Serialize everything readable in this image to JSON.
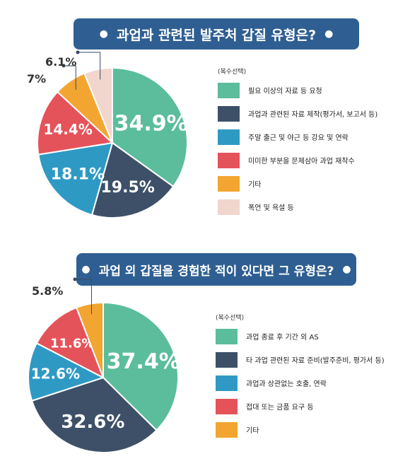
{
  "colors": {
    "title_bg": "#2f5f92",
    "leader": "#3a4a66"
  },
  "chart_data": [
    {
      "type": "pie",
      "title": "과업과 관련된 발주처 갑질 유형은?",
      "legend_note": "(복수선택)",
      "legend_position": "right",
      "slices": [
        {
          "label": "필요 이상의 자료 등 요청",
          "value": 34.9,
          "display": "34.9%",
          "color": "#5bbd9b"
        },
        {
          "label": "과업과 관련된 자료 제작(평가서, 보고서 등)",
          "value": 19.5,
          "display": "19.5%",
          "color": "#3d5068"
        },
        {
          "label": "주말 출근 및 야근 등 강요 및 연락",
          "value": 18.1,
          "display": "18.1%",
          "color": "#2e9ac4"
        },
        {
          "label": "미미한 부분을 문제삼아 과업 재착수",
          "value": 14.4,
          "display": "14.4%",
          "color": "#e5535a"
        },
        {
          "label": "기타",
          "value": 7,
          "display": "7%",
          "color": "#f2a530"
        },
        {
          "label": "폭언 및 욕설 등",
          "value": 6.1,
          "display": "6.1%",
          "color": "#f1d6cd"
        }
      ]
    },
    {
      "type": "pie",
      "title": "과업 외 갑질을 경험한 적이 있다면 그 유형은?",
      "legend_note": "(복수선택)",
      "legend_position": "right",
      "slices": [
        {
          "label": "과업 종료 후 기간 외 AS",
          "value": 37.4,
          "display": "37.4%",
          "color": "#5bbd9b"
        },
        {
          "label": "타 과업 관련된 자료 준비(발주준비, 평가서 등)",
          "value": 32.6,
          "display": "32.6%",
          "color": "#3d5068"
        },
        {
          "label": "과업과 상관없는 호출, 연락",
          "value": 12.6,
          "display": "12.6%",
          "color": "#2e9ac4"
        },
        {
          "label": "접대 또는 금품 요구 등",
          "value": 11.6,
          "display": "11.6%",
          "color": "#e5535a"
        },
        {
          "label": "기타",
          "value": 5.8,
          "display": "5.8%",
          "color": "#f2a530"
        }
      ]
    }
  ]
}
